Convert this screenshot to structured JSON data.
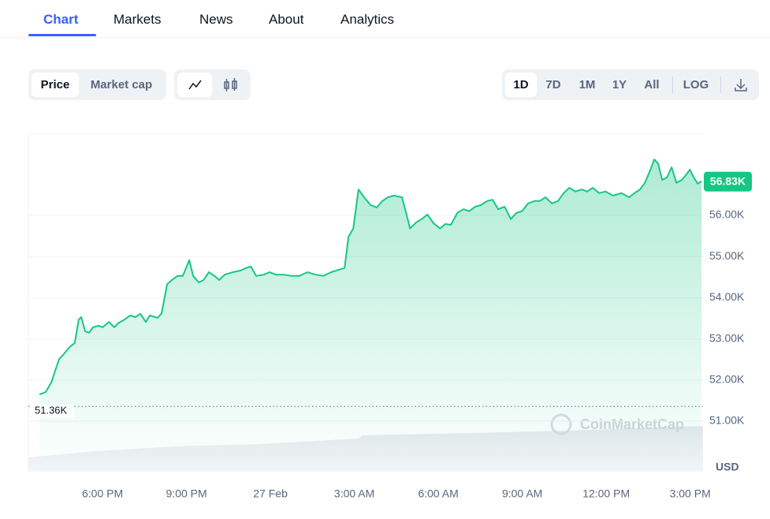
{
  "tabs": [
    "Chart",
    "Markets",
    "News",
    "About",
    "Analytics"
  ],
  "toolbar": {
    "metric": [
      "Price",
      "Market cap"
    ],
    "ranges": [
      "1D",
      "7D",
      "1M",
      "1Y",
      "All"
    ],
    "scale": "LOG"
  },
  "watermark": "CoinMarketCap",
  "chart_data": {
    "type": "line",
    "color": "#16c784",
    "y_label": "USD",
    "current_label": "56.83K",
    "reference": {
      "value": 51360,
      "label": "51.36K"
    },
    "xlim": [
      -8.65,
      15.46
    ],
    "ylim": [
      49774,
      57974
    ],
    "xticks": [
      {
        "value": -6,
        "label": "6:00 PM"
      },
      {
        "value": -3,
        "label": "9:00 PM"
      },
      {
        "value": 0,
        "label": "27 Feb"
      },
      {
        "value": 3,
        "label": "3:00 AM"
      },
      {
        "value": 6,
        "label": "6:00 AM"
      },
      {
        "value": 9,
        "label": "9:00 AM"
      },
      {
        "value": 12,
        "label": "12:00 PM"
      },
      {
        "value": 15,
        "label": "3:00 PM"
      }
    ],
    "yticks": [
      {
        "value": 51000,
        "label": "51.00K"
      },
      {
        "value": 52000,
        "label": "52.00K"
      },
      {
        "value": 53000,
        "label": "53.00K"
      },
      {
        "value": 54000,
        "label": "54.00K"
      },
      {
        "value": 55000,
        "label": "55.00K"
      },
      {
        "value": 56000,
        "label": "56.00K"
      }
    ],
    "grid": true,
    "x": [
      -8.25,
      -8.03,
      -7.83,
      -7.69,
      -7.55,
      -7.41,
      -7.18,
      -6.99,
      -6.85,
      -6.76,
      -6.62,
      -6.48,
      -6.34,
      -6.14,
      -6.0,
      -5.77,
      -5.58,
      -5.44,
      -5.21,
      -5.01,
      -4.82,
      -4.65,
      -4.45,
      -4.31,
      -4.03,
      -3.89,
      -3.69,
      -3.52,
      -3.32,
      -3.13,
      -2.9,
      -2.76,
      -2.56,
      -2.39,
      -2.2,
      -2.0,
      -1.83,
      -1.63,
      -1.35,
      -1.07,
      -0.87,
      -0.7,
      -0.51,
      -0.23,
      -0.03,
      0.2,
      0.48,
      0.76,
      1.04,
      1.32,
      1.61,
      1.89,
      2.17,
      2.45,
      2.65,
      2.79,
      2.96,
      3.15,
      3.35,
      3.58,
      3.8,
      4.0,
      4.2,
      4.42,
      4.7,
      4.85,
      4.99,
      5.21,
      5.41,
      5.61,
      5.83,
      6.06,
      6.25,
      6.45,
      6.68,
      6.9,
      7.1,
      7.32,
      7.52,
      7.75,
      7.94,
      8.14,
      8.37,
      8.59,
      8.79,
      8.99,
      9.21,
      9.44,
      9.63,
      9.83,
      10.06,
      10.28,
      10.48,
      10.68,
      10.9,
      11.13,
      11.32,
      11.52,
      11.75,
      11.97,
      12.25,
      12.54,
      12.82,
      13.01,
      13.21,
      13.38,
      13.58,
      13.72,
      13.86,
      14.0,
      14.17,
      14.34,
      14.51,
      14.7,
      14.85,
      14.99,
      15.13,
      15.27,
      15.41
    ],
    "values": [
      51650,
      51710,
      51940,
      52230,
      52510,
      52610,
      52800,
      52900,
      53470,
      53530,
      53180,
      53150,
      53280,
      53320,
      53280,
      53410,
      53280,
      53380,
      53470,
      53570,
      53530,
      53610,
      53410,
      53570,
      53510,
      53620,
      54330,
      54430,
      54530,
      54530,
      54910,
      54530,
      54370,
      54430,
      54620,
      54530,
      54430,
      54560,
      54620,
      54660,
      54720,
      54760,
      54530,
      54560,
      54620,
      54560,
      54560,
      54530,
      54530,
      54620,
      54560,
      54530,
      54620,
      54680,
      54720,
      55480,
      55680,
      56630,
      56440,
      56250,
      56190,
      56350,
      56440,
      56480,
      56440,
      56060,
      55680,
      55830,
      55910,
      56020,
      55810,
      55680,
      55790,
      55770,
      56060,
      56150,
      56100,
      56210,
      56250,
      56350,
      56380,
      56150,
      56210,
      55910,
      56060,
      56100,
      56290,
      56350,
      56350,
      56440,
      56290,
      56350,
      56540,
      56670,
      56580,
      56630,
      56580,
      56670,
      56540,
      56580,
      56480,
      56540,
      56440,
      56540,
      56630,
      56790,
      57110,
      57360,
      57250,
      56860,
      56920,
      57170,
      56790,
      56860,
      56980,
      57110,
      56920,
      56770,
      56830
    ]
  }
}
